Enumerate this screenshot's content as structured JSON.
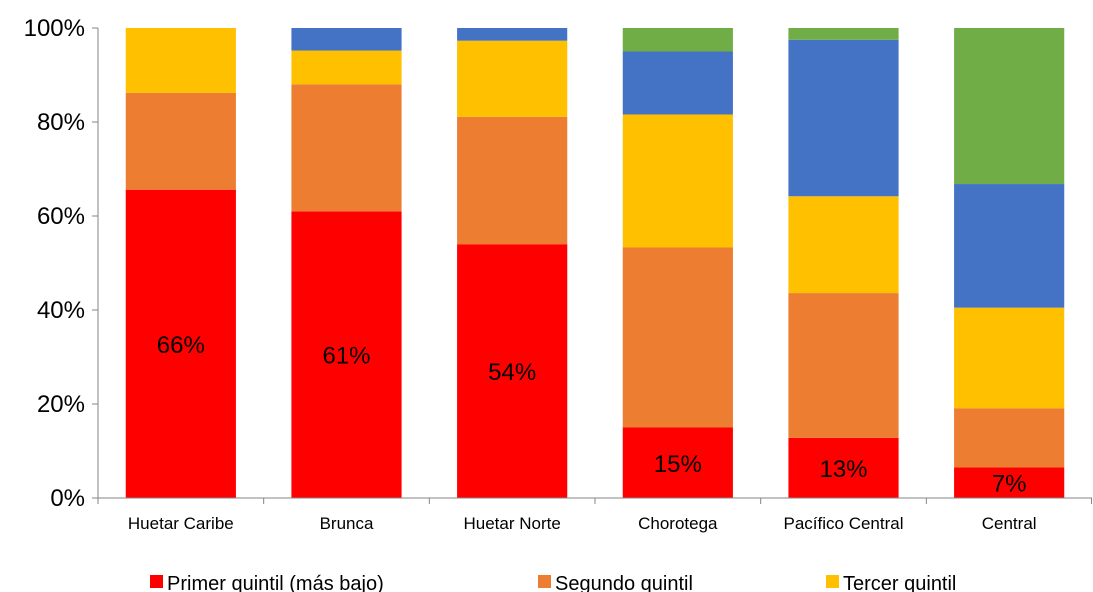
{
  "chart_data": {
    "type": "bar",
    "stacked": true,
    "percent": true,
    "title": "",
    "xlabel": "",
    "ylabel": "",
    "ylim": [
      0,
      100
    ],
    "yticks": [
      "0%",
      "20%",
      "40%",
      "60%",
      "80%",
      "100%"
    ],
    "grid": false,
    "legend_position": "bottom",
    "categories": [
      "Huetar Caribe",
      "Brunca",
      "Huetar Norte",
      "Chorotega",
      "Pacífico Central",
      "Central"
    ],
    "series": [
      {
        "name": "Primer quintil (más bajo)",
        "color": "#ff0000",
        "values": [
          65.6,
          61.0,
          54.0,
          15.0,
          12.8,
          6.5
        ]
      },
      {
        "name": "Segundo quintil",
        "color": "#ed7d31",
        "values": [
          20.6,
          27.0,
          27.1,
          38.3,
          30.8,
          12.6
        ]
      },
      {
        "name": "Tercer quintil",
        "color": "#ffc000",
        "values": [
          13.8,
          7.2,
          16.2,
          28.3,
          20.6,
          21.4
        ]
      },
      {
        "name": "",
        "color": "#4472c4",
        "values": [
          0,
          4.8,
          2.7,
          13.4,
          33.3,
          26.3
        ]
      },
      {
        "name": "",
        "color": "#70ad47",
        "values": [
          0,
          0,
          0,
          5.0,
          2.5,
          33.2
        ]
      }
    ],
    "data_labels": [
      "66%",
      "61%",
      "54%",
      "15%",
      "13%",
      "7%"
    ]
  }
}
